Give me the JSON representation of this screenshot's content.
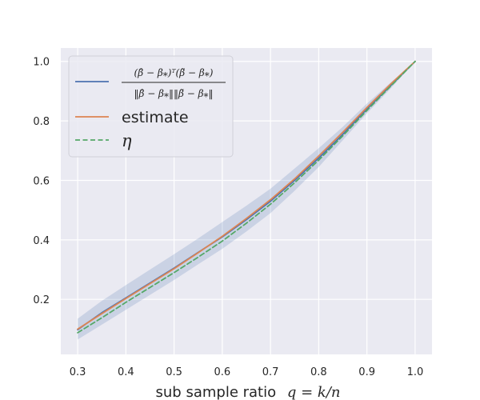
{
  "chart_data": {
    "type": "line",
    "title": "",
    "xlabel": "sub sample ratio",
    "xlabel_math": "q = k/n",
    "ylabel": "",
    "xlim": [
      0.265,
      1.035
    ],
    "ylim": [
      0.015,
      1.045
    ],
    "xticks": [
      "0.3",
      "0.4",
      "0.5",
      "0.6",
      "0.7",
      "0.8",
      "0.9",
      "1.0"
    ],
    "yticks": [
      "0.2",
      "0.4",
      "0.6",
      "0.8",
      "1.0"
    ],
    "x": [
      0.3,
      0.35,
      0.4,
      0.45,
      0.5,
      0.55,
      0.6,
      0.65,
      0.7,
      0.75,
      0.8,
      0.85,
      0.9,
      0.95,
      1.0
    ],
    "series": [
      {
        "name": "(β̂ − β*)ᵀ(β̃ − β*) / ‖β̂ − β*‖‖β̃ − β*‖",
        "color": "#4c72b0",
        "style": "solid",
        "values": [
          0.098,
          0.155,
          0.205,
          0.255,
          0.305,
          0.358,
          0.41,
          0.468,
          0.53,
          0.6,
          0.675,
          0.755,
          0.84,
          0.92,
          1.0
        ],
        "band_lower": [
          0.065,
          0.115,
          0.165,
          0.215,
          0.265,
          0.318,
          0.37,
          0.428,
          0.49,
          0.565,
          0.645,
          0.735,
          0.825,
          0.91,
          1.0
        ],
        "band_upper": [
          0.135,
          0.195,
          0.248,
          0.3,
          0.352,
          0.405,
          0.46,
          0.515,
          0.572,
          0.64,
          0.708,
          0.78,
          0.858,
          0.93,
          1.0
        ]
      },
      {
        "name": "estimate",
        "color": "#dd8452",
        "style": "solid",
        "values": [
          0.1,
          0.152,
          0.203,
          0.253,
          0.303,
          0.357,
          0.412,
          0.472,
          0.535,
          0.605,
          0.682,
          0.762,
          0.845,
          0.925,
          1.0
        ]
      },
      {
        "name": "η",
        "color": "#55a868",
        "style": "dashed",
        "values": [
          0.088,
          0.138,
          0.19,
          0.24,
          0.29,
          0.342,
          0.396,
          0.456,
          0.52,
          0.592,
          0.668,
          0.75,
          0.835,
          0.918,
          1.0
        ]
      }
    ],
    "band_color": "#4c72b0",
    "grid": true,
    "legend_position": "top-left",
    "background": "#eaeaf2",
    "grid_color": "#ffffff"
  }
}
